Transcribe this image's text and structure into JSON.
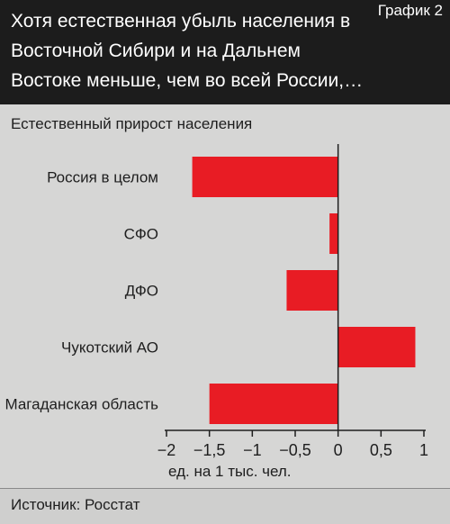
{
  "header": {
    "title": "Хотя естественная убыль населения в Восточной Сибири и на Дальнем Востоке меньше, чем во всей России,…",
    "figure_label": "График 2"
  },
  "footer": {
    "source": "Источник: Росстат"
  },
  "colors": {
    "header_bg": "#1c1c1c",
    "bar": "#e81c24",
    "background": "#d6d6d5"
  },
  "chart_data": {
    "type": "bar",
    "orientation": "horizontal",
    "title": "Естественный прирост населения",
    "xlabel": "ед. на 1 тыс. чел.",
    "categories": [
      "Россия в целом",
      "СФО",
      "ДФО",
      "Чукотский АО",
      "Магаданская область"
    ],
    "values": [
      -1.7,
      -0.1,
      -0.6,
      0.9,
      -1.5
    ],
    "xlim": [
      -2,
      1
    ],
    "xticks": [
      -2,
      -1.5,
      -1,
      -0.5,
      0,
      0.5,
      1
    ],
    "xtick_labels": [
      "−2",
      "−1,5",
      "−1",
      "−0,5",
      "0",
      "0,5",
      "1"
    ],
    "grid": false
  }
}
